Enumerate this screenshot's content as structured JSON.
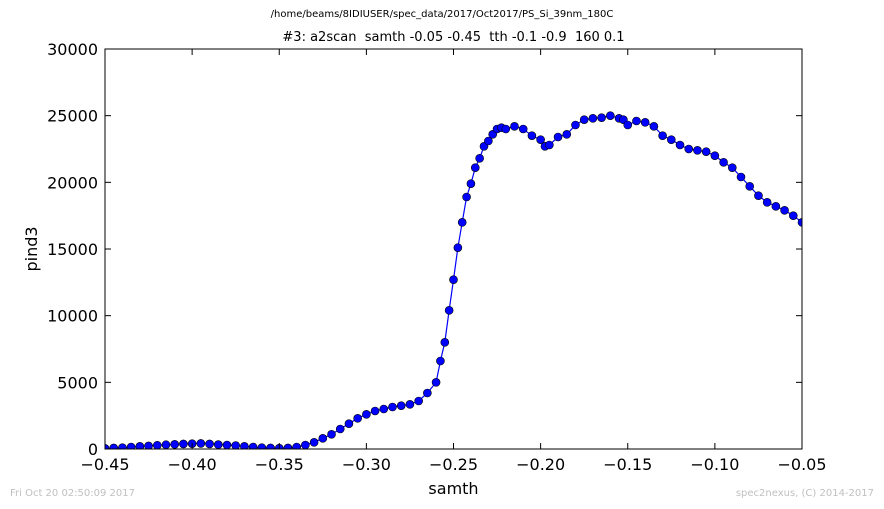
{
  "figure": {
    "suptitle": "/home/beams/8IDIUSER/spec_data/2017/Oct2017/PS_Si_39nm_180C",
    "footer_left": "Fri Oct 20 02:50:09 2017",
    "footer_right": "spec2nexus, (C) 2014-2017"
  },
  "chart_data": {
    "type": "line",
    "title": "#3: a2scan  samth -0.05 -0.45  tth -0.1 -0.9  160 0.1",
    "xlabel": "samth",
    "ylabel": "pind3",
    "xlim": [
      -0.45,
      -0.05
    ],
    "ylim": [
      0,
      30000
    ],
    "xticks": [
      -0.45,
      -0.4,
      -0.35,
      -0.3,
      -0.25,
      -0.2,
      -0.15,
      -0.1,
      -0.05
    ],
    "xtick_labels": [
      "−0.45",
      "−0.40",
      "−0.35",
      "−0.30",
      "−0.25",
      "−0.20",
      "−0.15",
      "−0.10",
      "−0.05"
    ],
    "yticks": [
      0,
      5000,
      10000,
      15000,
      20000,
      25000,
      30000
    ],
    "ytick_labels": [
      "0",
      "5000",
      "10000",
      "15000",
      "20000",
      "25000",
      "30000"
    ],
    "marker": "circle",
    "color": "#0000ff",
    "grid": false,
    "series": [
      {
        "x": [
          -0.45,
          -0.445,
          -0.44,
          -0.435,
          -0.43,
          -0.425,
          -0.42,
          -0.415,
          -0.41,
          -0.405,
          -0.4,
          -0.395,
          -0.39,
          -0.385,
          -0.38,
          -0.375,
          -0.37,
          -0.365,
          -0.36,
          -0.355,
          -0.35,
          -0.345,
          -0.34,
          -0.335,
          -0.33,
          -0.325,
          -0.32,
          -0.315,
          -0.31,
          -0.305,
          -0.3,
          -0.295,
          -0.29,
          -0.285,
          -0.28,
          -0.275,
          -0.27,
          -0.265,
          -0.26,
          -0.2575,
          -0.255,
          -0.2525,
          -0.25,
          -0.2475,
          -0.245,
          -0.2425,
          -0.24,
          -0.2375,
          -0.235,
          -0.2325,
          -0.23,
          -0.2275,
          -0.225,
          -0.2225,
          -0.22,
          -0.215,
          -0.21,
          -0.205,
          -0.2,
          -0.1975,
          -0.195,
          -0.19,
          -0.185,
          -0.18,
          -0.175,
          -0.17,
          -0.165,
          -0.16,
          -0.155,
          -0.1525,
          -0.15,
          -0.145,
          -0.14,
          -0.135,
          -0.13,
          -0.125,
          -0.12,
          -0.115,
          -0.11,
          -0.105,
          -0.1,
          -0.095,
          -0.09,
          -0.085,
          -0.08,
          -0.075,
          -0.07,
          -0.065,
          -0.06,
          -0.055,
          -0.05
        ],
        "y": [
          50,
          80,
          100,
          150,
          200,
          230,
          280,
          320,
          350,
          380,
          400,
          420,
          380,
          330,
          300,
          260,
          200,
          150,
          100,
          80,
          60,
          80,
          150,
          300,
          500,
          800,
          1100,
          1500,
          1900,
          2300,
          2600,
          2850,
          3000,
          3150,
          3250,
          3350,
          3600,
          4200,
          5000,
          6600,
          8000,
          10400,
          12700,
          15100,
          17000,
          18900,
          19900,
          21100,
          21800,
          22700,
          23100,
          23600,
          24000,
          24100,
          24000,
          24200,
          24000,
          23500,
          23200,
          22700,
          22800,
          23400,
          23600,
          24300,
          24700,
          24800,
          24850,
          25000,
          24800,
          24700,
          24300,
          24600,
          24500,
          24200,
          23500,
          23200,
          22800,
          22500,
          22400,
          22300,
          22000,
          21500,
          21100,
          20400,
          19700,
          19000,
          18500,
          18200,
          17900,
          17500,
          17000
        ]
      }
    ]
  }
}
